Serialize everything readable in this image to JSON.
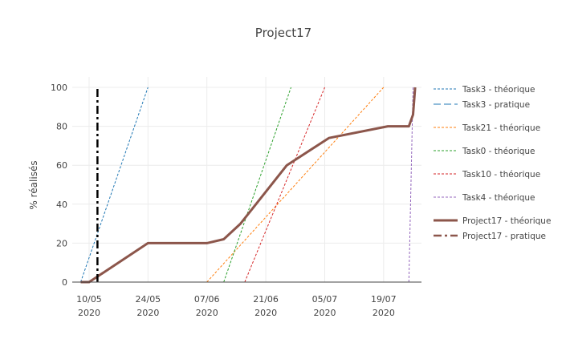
{
  "chart_data": {
    "type": "line",
    "title": "Project17",
    "xlabel": "",
    "ylabel": "% réalisés",
    "xlim": [
      "2020-05-06",
      "2020-07-28"
    ],
    "ylim": [
      0,
      105
    ],
    "x_ticks": [
      {
        "date": "2020-05-10",
        "line1": "10/05",
        "line2": "2020"
      },
      {
        "date": "2020-05-24",
        "line1": "24/05",
        "line2": "2020"
      },
      {
        "date": "2020-06-07",
        "line1": "07/06",
        "line2": "2020"
      },
      {
        "date": "2020-06-21",
        "line1": "21/06",
        "line2": "2020"
      },
      {
        "date": "2020-07-05",
        "line1": "05/07",
        "line2": "2020"
      },
      {
        "date": "2020-07-19",
        "line1": "19/07",
        "line2": "2020"
      }
    ],
    "y_ticks": [
      0,
      20,
      40,
      60,
      80,
      100
    ],
    "grid": true,
    "legend_position": "right",
    "series": [
      {
        "name": "Task3 - théorique",
        "color": "#1f77b4",
        "style": "dot",
        "width": 1,
        "x": [
          "2020-05-08",
          "2020-05-24"
        ],
        "y": [
          0,
          100
        ]
      },
      {
        "name": "Task3 - pratique",
        "color": "#1f77b4",
        "style": "dash",
        "width": 1,
        "x": [],
        "y": []
      },
      {
        "name": "Task21 - théorique",
        "color": "#ff7f0e",
        "style": "dot",
        "width": 1,
        "x": [
          "2020-06-07",
          "2020-07-19"
        ],
        "y": [
          0,
          100
        ]
      },
      {
        "name": "Task0 - théorique",
        "color": "#2ca02c",
        "style": "dot",
        "width": 1,
        "x": [
          "2020-06-11",
          "2020-06-27"
        ],
        "y": [
          0,
          100
        ]
      },
      {
        "name": "Task10 - théorique",
        "color": "#d62728",
        "style": "dot",
        "width": 1,
        "x": [
          "2020-06-16",
          "2020-07-05"
        ],
        "y": [
          0,
          100
        ]
      },
      {
        "name": "Task4 - théorique",
        "color": "#9467bd",
        "style": "dot",
        "width": 1,
        "x": [
          "2020-07-25",
          "2020-07-26"
        ],
        "y": [
          0,
          100
        ]
      },
      {
        "name": "Project17 - théorique",
        "color": "#8c564b",
        "style": "solid",
        "width": 3,
        "x": [
          "2020-05-08",
          "2020-05-10",
          "2020-05-24",
          "2020-06-07",
          "2020-06-11",
          "2020-06-15",
          "2020-06-26",
          "2020-07-06",
          "2020-07-20",
          "2020-07-25",
          "2020-07-26",
          "2020-07-26T12:00"
        ],
        "y": [
          0,
          0,
          20,
          20,
          22,
          30,
          60,
          74,
          80,
          80,
          86,
          100
        ]
      },
      {
        "name": "Project17 - pratique",
        "color": "#000000",
        "style": "dashdot",
        "width": 2.5,
        "legend_color": "#8c564b",
        "x": [
          "2020-05-12",
          "2020-05-12"
        ],
        "y": [
          0,
          100
        ]
      }
    ]
  }
}
